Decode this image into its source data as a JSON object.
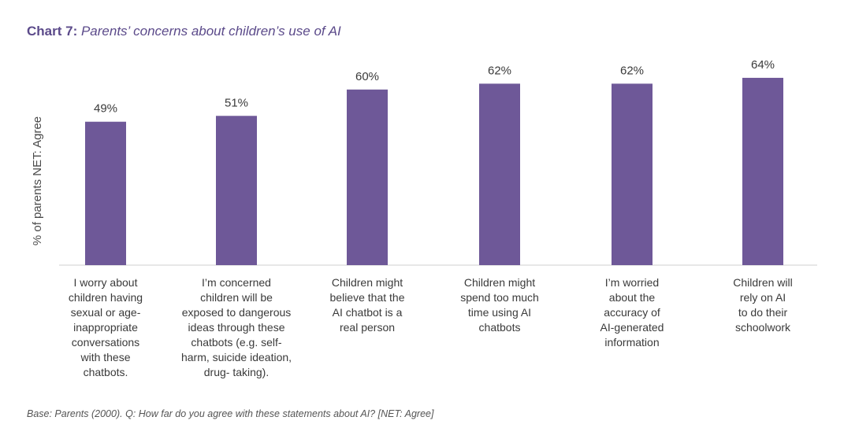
{
  "title": {
    "prefix": "Chart 7:",
    "text": "Parents’ concerns about children’s use of AI"
  },
  "footnote": "Base: Parents (2000). Q: How far do you agree with these statements about AI? [NET: Agree]",
  "chart_data": {
    "type": "bar",
    "title": "Chart 7: Parents’ concerns about children’s use of AI",
    "ylabel": "% of parents NET: Agree",
    "xlabel": "",
    "ylim": [
      0,
      100
    ],
    "grid": false,
    "legend": "none",
    "bar_color": "#6e5898",
    "axis_color": "#cfcfcf",
    "categories": [
      [
        "I worry about",
        "children having",
        "sexual or age-",
        "inappropriate",
        "conversations",
        "with these",
        "chatbots."
      ],
      [
        "I’m concerned",
        "children will be",
        "exposed to dangerous",
        "ideas through these",
        "chatbots (e.g. self-",
        "harm, suicide ideation,",
        "drug- taking)."
      ],
      [
        "Children might",
        "believe that the",
        "AI chatbot is a",
        "real person"
      ],
      [
        "Children might",
        "spend too much",
        "time using AI",
        "chatbots"
      ],
      [
        "I’m worried",
        "about the",
        "accuracy of",
        "AI-generated",
        "information"
      ],
      [
        "Children will",
        "rely on AI",
        "to do their",
        "schoolwork"
      ]
    ],
    "values": [
      49,
      51,
      60,
      62,
      62,
      64
    ],
    "value_labels": [
      "49%",
      "51%",
      "60%",
      "62%",
      "62%",
      "64%"
    ]
  }
}
